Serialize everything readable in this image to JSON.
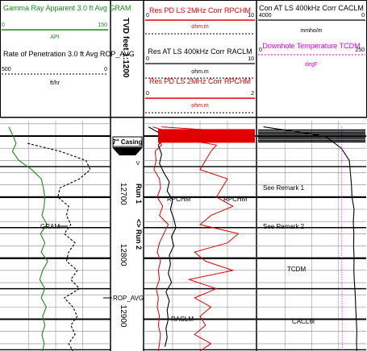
{
  "header": {
    "track1": {
      "curve1": {
        "title": "Gamma Ray Apparent 3.0 ft Avg GRAM",
        "min": "0",
        "max": "150",
        "unit": "API",
        "color": "#1a8a1a"
      },
      "curve2": {
        "title": "Rate of Penetration 3.0 ft Avg ROP_AVG",
        "min": "500",
        "max": "0",
        "unit": "ft/hr",
        "color": "#000000"
      }
    },
    "depth_track": {
      "title": "TVD feet 1:1200"
    },
    "track2": {
      "curve1": {
        "title": "Res PD LS 2MHz Corr RPCHM",
        "min": "0",
        "max": "10",
        "unit": "ohm.m",
        "color": "#e00000"
      },
      "curve2": {
        "title": "Res AT LS 400kHz Corr RACLM",
        "min": "0",
        "max": "10",
        "unit": "ohm.m",
        "color": "#000000"
      },
      "curve3": {
        "title": "Res PD LS 2MHz Corr RPCHM",
        "min": "0",
        "max": "2",
        "unit": "ohm.m",
        "color": "#e00000"
      }
    },
    "track3": {
      "curve1": {
        "title": "Con AT LS 400kHz Corr CACLM",
        "min": "4000",
        "max": "0",
        "unit": "mmho/m",
        "color": "#000000"
      },
      "curve2": {
        "title": "Downhole Temperature TCDM",
        "min": "0",
        "max": "250",
        "unit": "degF",
        "color": "#e000e0"
      }
    }
  },
  "annotations": {
    "casing": "7\" Casing",
    "v_mark": "V",
    "run1": "Run 1",
    "run2": "<> Run 2",
    "remark1": "See Remark 1",
    "remark2": "See Remark 2"
  },
  "curve_labels": {
    "gram": "GRAM",
    "rop": "ROP_AVG",
    "rpchm_a": "RPCHM",
    "rpchm_b": "RPCHM",
    "raclm": "RACLM",
    "tcdm": "TCDM",
    "caclm": "CACLM"
  },
  "chart_data": {
    "type": "line",
    "depth_unit": "ft",
    "depth_ticks": [
      12700,
      12800,
      12900
    ],
    "depth_range": [
      12575,
      12952
    ],
    "series": [
      {
        "name": "GRAM",
        "track": 1,
        "scale": [
          0,
          150
        ],
        "color": "#1a8a1a",
        "depth": [
          12585,
          12600,
          12612,
          12625,
          12640,
          12655,
          12670,
          12685,
          12700,
          12715,
          12730,
          12745,
          12760,
          12775,
          12790,
          12805,
          12820,
          12835,
          12850,
          12865,
          12880,
          12895,
          12910,
          12925,
          12940,
          12952
        ],
        "values": [
          10,
          16,
          20,
          15,
          24,
          42,
          55,
          58,
          60,
          59,
          56,
          63,
          54,
          60,
          55,
          64,
          57,
          53,
          60,
          55,
          62,
          57,
          60,
          56,
          59,
          57
        ]
      },
      {
        "name": "ROP_AVG",
        "track": 1,
        "scale": [
          500,
          0
        ],
        "color": "#000000",
        "depth": [
          12612,
          12625,
          12640,
          12655,
          12670,
          12685,
          12700,
          12715,
          12730,
          12745,
          12760,
          12775,
          12790,
          12805,
          12820,
          12835,
          12850,
          12865,
          12880,
          12895,
          12910,
          12925,
          12940,
          12952
        ],
        "values": [
          380,
          230,
          110,
          90,
          140,
          230,
          240,
          190,
          200,
          180,
          210,
          160,
          190,
          200,
          150,
          180,
          140,
          210,
          170,
          150,
          180,
          160,
          190,
          170
        ]
      },
      {
        "name": "RPCHM",
        "track": 2,
        "scale": [
          0,
          10
        ],
        "color": "#e00000",
        "depth": [
          12585,
          12595,
          12605,
          12615,
          12625,
          12640,
          12655,
          12670,
          12685,
          12700,
          12715,
          12730,
          12745,
          12760,
          12775,
          12790,
          12805,
          12820,
          12835,
          12850,
          12865,
          12880,
          12895,
          12910,
          12925,
          12940,
          12952
        ],
        "values": [
          0.7,
          2.5,
          1.2,
          1.5,
          0.9,
          1.0,
          0.8,
          1.3,
          1.4,
          1.1,
          1.6,
          1.3,
          2.1,
          1.7,
          1.3,
          1.1,
          1.4,
          1.2,
          1.3,
          1.0,
          1.2,
          1.1,
          1.3,
          1.2,
          1.4,
          1.3,
          1.2
        ]
      },
      {
        "name": "RPCHM",
        "track": 2,
        "scale": [
          0,
          2
        ],
        "color": "#e00000",
        "depth": [
          12585,
          12595,
          12605,
          12615,
          12625,
          12640,
          12655,
          12670,
          12685,
          12700,
          12715,
          12730,
          12745,
          12760,
          12775,
          12790,
          12805,
          12820,
          12835,
          12850,
          12865,
          12880,
          12895,
          12910,
          12925,
          12940,
          12952
        ],
        "values": [
          0.3,
          2.0,
          0.7,
          1.3,
          1.2,
          1.1,
          1.0,
          1.5,
          1.4,
          1.3,
          1.6,
          1.2,
          1.0,
          1.7,
          1.5,
          0.9,
          1.1,
          1.6,
          0.8,
          1.3,
          0.9,
          1.2,
          1.0,
          1.1,
          0.9,
          1.2,
          1.0
        ]
      },
      {
        "name": "RACLM",
        "track": 2,
        "scale": [
          0,
          10
        ],
        "color": "#000000",
        "depth": [
          12585,
          12600,
          12615,
          12630,
          12645,
          12660,
          12675,
          12690,
          12705,
          12720,
          12735,
          12750,
          12765,
          12780,
          12795,
          12810,
          12825,
          12840,
          12855,
          12870,
          12885,
          12900,
          12915,
          12930,
          12945
        ],
        "values": [
          0.3,
          1.8,
          1.2,
          1.5,
          1.3,
          1.7,
          2.2,
          2.0,
          2.5,
          2.3,
          2.6,
          2.8,
          2.4,
          2.6,
          2.2,
          2.3,
          2.1,
          2.4,
          1.9,
          2.2,
          2.0,
          2.1,
          1.9,
          2.0,
          1.8
        ]
      },
      {
        "name": "CACLM",
        "track": 3,
        "scale": [
          4000,
          0
        ],
        "color": "#000000",
        "depth": [
          12585,
          12600,
          12620,
          12640,
          12660,
          12680,
          12700,
          12720,
          12740,
          12760,
          12780,
          12800,
          12820,
          12840,
          12860,
          12880,
          12900,
          12920,
          12940,
          12952
        ],
        "values": [
          3800,
          1500,
          900,
          600,
          560,
          520,
          500,
          420,
          450,
          430,
          440,
          420,
          430,
          410,
          380,
          360,
          340,
          320,
          330,
          320
        ]
      },
      {
        "name": "TCDM",
        "track": 3,
        "scale": [
          0,
          250
        ],
        "color": "#e000e0",
        "depth": [
          12585,
          12700,
          12800,
          12900,
          12952
        ],
        "values": [
          195,
          195,
          195,
          196,
          196
        ]
      }
    ]
  }
}
